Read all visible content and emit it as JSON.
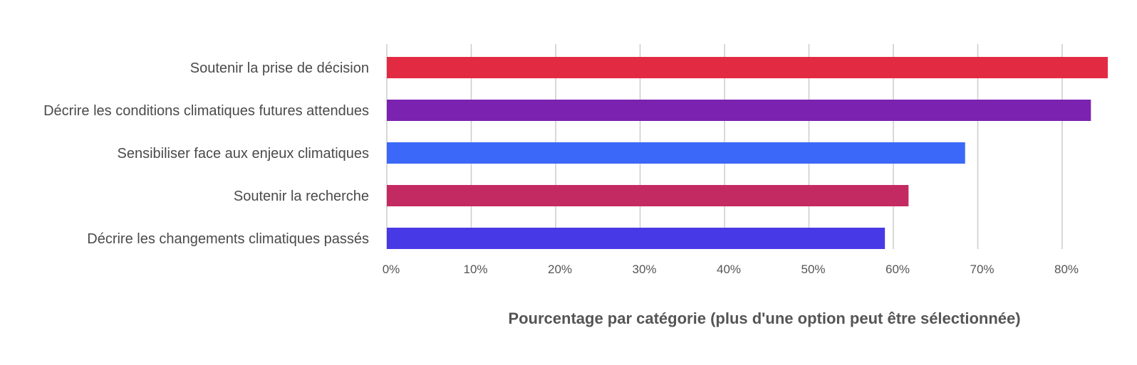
{
  "chart_data": {
    "type": "bar",
    "orientation": "horizontal",
    "title": "",
    "xlabel": "Pourcentage par catégorie (plus d'une option peut être sélectionnée)",
    "ylabel": "",
    "xlim": [
      0,
      85
    ],
    "grid": true,
    "legend": "none",
    "categories": [
      "Soutenir la prise de décision",
      "Décrire les conditions climatiques futures attendues",
      "Sensibiliser face aux enjeux climatiques",
      "Soutenir la recherche",
      "Décrire les changements climatiques passés"
    ],
    "values": [
      85.4,
      83.4,
      68.5,
      61.8,
      59.0
    ],
    "colors": [
      "#e22b42",
      "#7b22b0",
      "#3b68f8",
      "#c42a62",
      "#4839e6"
    ],
    "x_ticks": [
      0,
      10,
      20,
      30,
      40,
      50,
      60,
      70,
      80
    ],
    "x_tick_labels": [
      "0%",
      "10%",
      "20%",
      "30%",
      "40%",
      "50%",
      "60%",
      "70%",
      "80%"
    ]
  }
}
